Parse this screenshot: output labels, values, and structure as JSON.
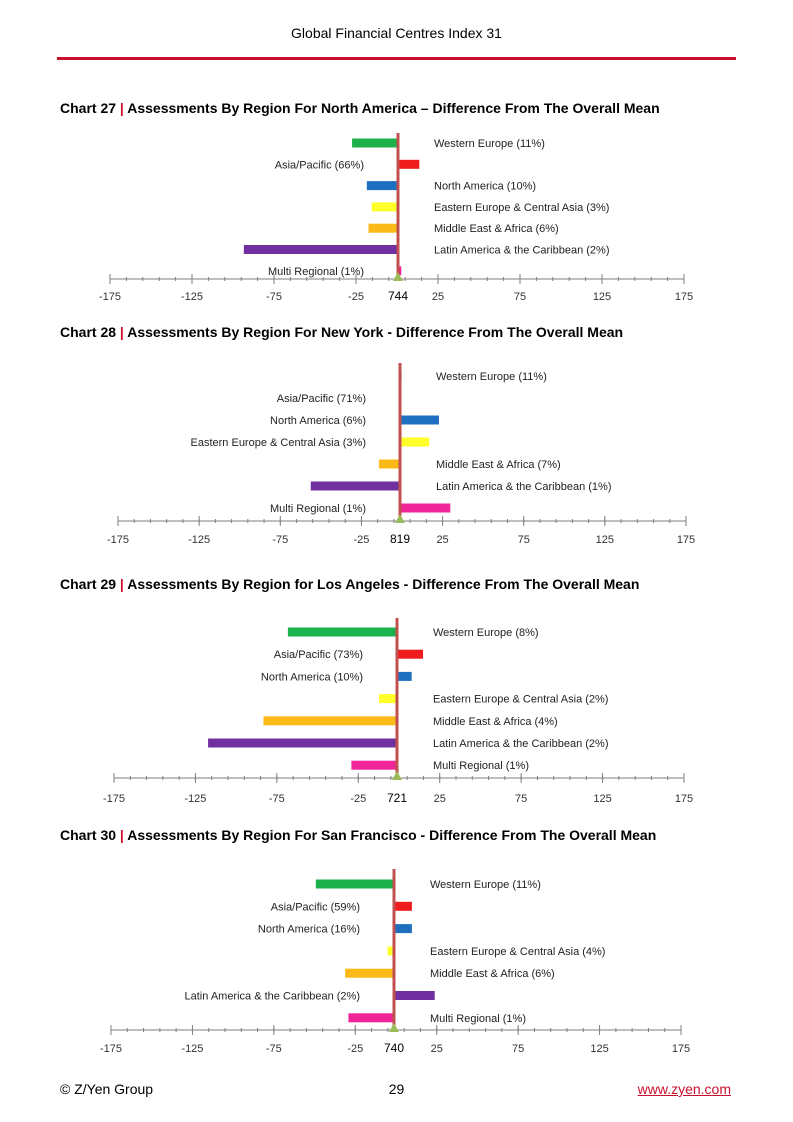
{
  "header": {
    "title": "Global Financial Centres Index 31"
  },
  "footer": {
    "left": "© Z/Yen Group",
    "page": "29",
    "link": "www.zyen.com"
  },
  "colors": {
    "Western Europe": "#1db14b",
    "Asia/Pacific": "#ee1c1c",
    "North America": "#1f6fc1",
    "Eastern Europe & Central Asia": "#ffff2a",
    "Middle East & Africa": "#fbba17",
    "Latin America & the Caribbean": "#7030a0",
    "Multi Regional": "#f02598",
    "mean_line": "#c0504d",
    "mean_marker": "#9bbb59"
  },
  "chart_data": [
    {
      "type": "bar",
      "title_num": "Chart 27",
      "title_text": "Assessments By Region For North America – Difference From The Overall Mean",
      "mean": 744,
      "xlim": [
        -175,
        175
      ],
      "xticks": [
        -175,
        -125,
        -75,
        -25,
        25,
        75,
        125,
        175
      ],
      "categories": [
        "Western Europe",
        "Asia/Pacific",
        "North America",
        "Eastern Europe & Central Asia",
        "Middle East & Africa",
        "Latin America & the Caribbean",
        "Multi Regional"
      ],
      "labels": [
        "Western Europe (11%)",
        "Asia/Pacific (66%)",
        "North America (10%)",
        "Eastern Europe & Central Asia (3%)",
        "Middle East & Africa (6%)",
        "Latin America & the Caribbean (2%)",
        "Multi Regional (1%)"
      ],
      "values": [
        -28,
        13,
        -19,
        -16,
        -18,
        -94,
        2
      ]
    },
    {
      "type": "bar",
      "title_num": "Chart 28",
      "title_text": "Assessments By Region For New York - Difference From The Overall Mean",
      "mean": 819,
      "xlim": [
        -175,
        175
      ],
      "xticks": [
        -175,
        -125,
        -75,
        -25,
        25,
        75,
        125,
        175
      ],
      "categories": [
        "Western Europe",
        "Asia/Pacific",
        "North America",
        "Eastern Europe & Central Asia",
        "Middle East & Africa",
        "Latin America & the Caribbean",
        "Multi Regional"
      ],
      "labels": [
        "Western Europe (11%)",
        "Asia/Pacific (71%)",
        "North America (6%)",
        "Eastern Europe & Central Asia (3%)",
        "Middle East & Africa (7%)",
        "Latin America & the Caribbean (1%)",
        "Multi Regional (1%)"
      ],
      "values": [
        1,
        0,
        24,
        18,
        -13,
        -55,
        31
      ]
    },
    {
      "type": "bar",
      "title_num": "Chart 29",
      "title_text": "Assessments By Region for Los Angeles - Difference From The Overall Mean",
      "mean": 721,
      "xlim": [
        -175,
        175
      ],
      "xticks": [
        -175,
        -125,
        -75,
        -25,
        25,
        75,
        125,
        175
      ],
      "categories": [
        "Western Europe",
        "Asia/Pacific",
        "North America",
        "Eastern Europe & Central Asia",
        "Middle East & Africa",
        "Latin America & the Caribbean",
        "Multi Regional"
      ],
      "labels": [
        "Western Europe (8%)",
        "Asia/Pacific (73%)",
        "North America (10%)",
        "Eastern Europe & Central Asia (2%)",
        "Middle East & Africa (4%)",
        "Latin America & the Caribbean (2%)",
        "Multi Regional (1%)"
      ],
      "values": [
        -67,
        16,
        9,
        -11,
        -82,
        -116,
        -28
      ]
    },
    {
      "type": "bar",
      "title_num": "Chart 30",
      "title_text": "Assessments By Region For San Francisco - Difference From The Overall Mean",
      "mean": 740,
      "xlim": [
        -175,
        175
      ],
      "xticks": [
        -175,
        -125,
        -75,
        -25,
        25,
        75,
        125,
        175
      ],
      "categories": [
        "Western Europe",
        "Asia/Pacific",
        "North America",
        "Eastern Europe & Central Asia",
        "Middle East & Africa",
        "Latin America & the Caribbean",
        "Multi Regional"
      ],
      "labels": [
        "Western Europe (11%)",
        "Asia/Pacific (59%)",
        "North America (16%)",
        "Eastern Europe & Central Asia (4%)",
        "Middle East & Africa (6%)",
        "Latin America & the Caribbean (2%)",
        "Multi Regional (1%)"
      ],
      "values": [
        -48,
        11,
        11,
        -4,
        -30,
        25,
        -28
      ]
    }
  ]
}
